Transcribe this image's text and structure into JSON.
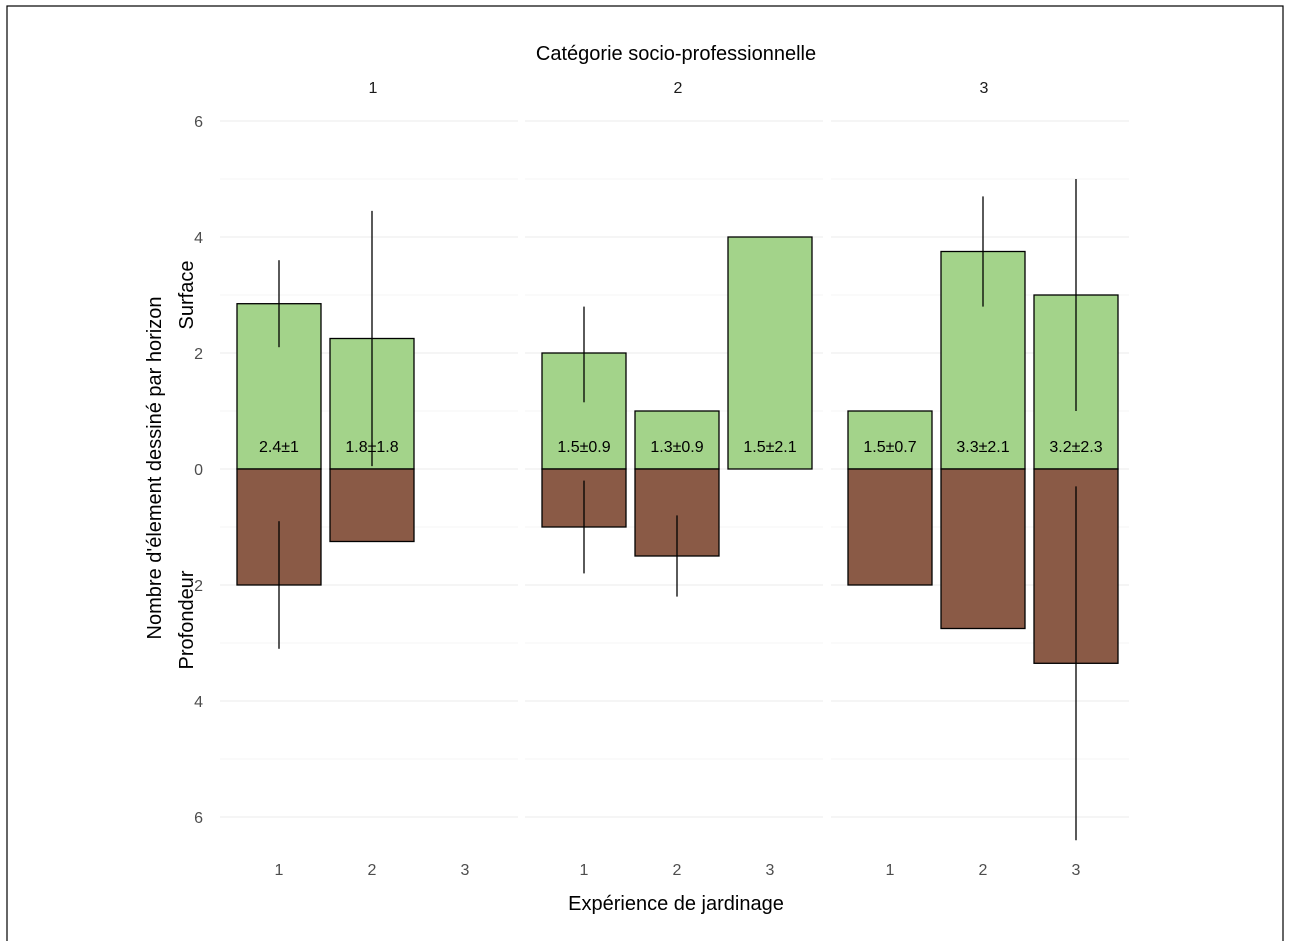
{
  "chart_data": {
    "type": "bar",
    "top_title": "Catégorie socio-professionnelle",
    "xlabel": "Expérience de jardinage",
    "ylabel": "Nombre d'élement dessiné par horizon",
    "ylabel_upper": "Surface",
    "ylabel_lower": "Profondeur",
    "ylim": [
      -6.5,
      6
    ],
    "y_ticks": [
      6,
      4,
      2,
      0,
      2,
      4,
      6
    ],
    "y_tick_values": [
      6,
      4,
      2,
      0,
      -2,
      -4,
      -6
    ],
    "x_categories": [
      "1",
      "2",
      "3"
    ],
    "colors": {
      "surface": "#a3d38a",
      "profondeur": "#8a5a46"
    },
    "panels": [
      {
        "name": "1",
        "surface": [
          {
            "x": "1",
            "value": 2.85,
            "err_low": 2.1,
            "err_high": 3.6,
            "label": "2.4±1"
          },
          {
            "x": "2",
            "value": 2.25,
            "err_low": 0.05,
            "err_high": 4.45,
            "label": "1.8±1.8"
          }
        ],
        "profondeur": [
          {
            "x": "1",
            "value": -2.0,
            "err_low": -3.1,
            "err_high": -0.9
          },
          {
            "x": "2",
            "value": -1.25
          }
        ]
      },
      {
        "name": "2",
        "surface": [
          {
            "x": "1",
            "value": 2.0,
            "err_low": 1.15,
            "err_high": 2.8,
            "label": "1.5±0.9"
          },
          {
            "x": "2",
            "value": 1.0,
            "label": "1.3±0.9"
          },
          {
            "x": "3",
            "value": 4.0,
            "label": "1.5±2.1"
          }
        ],
        "profondeur": [
          {
            "x": "1",
            "value": -1.0,
            "err_low": -1.8,
            "err_high": -0.2
          },
          {
            "x": "2",
            "value": -1.5,
            "err_low": -2.2,
            "err_high": -0.8
          }
        ]
      },
      {
        "name": "3",
        "surface": [
          {
            "x": "1",
            "value": 1.0,
            "label": "1.5±0.7"
          },
          {
            "x": "2",
            "value": 3.75,
            "err_low": 2.8,
            "err_high": 4.7,
            "label": "3.3±2.1"
          },
          {
            "x": "3",
            "value": 3.0,
            "err_low": 1.0,
            "err_high": 5.0,
            "label": "3.2±2.3"
          }
        ],
        "profondeur": [
          {
            "x": "1",
            "value": -2.0
          },
          {
            "x": "2",
            "value": -2.75
          },
          {
            "x": "3",
            "value": -3.35,
            "err_low": -6.4,
            "err_high": -0.3
          }
        ]
      }
    ]
  }
}
